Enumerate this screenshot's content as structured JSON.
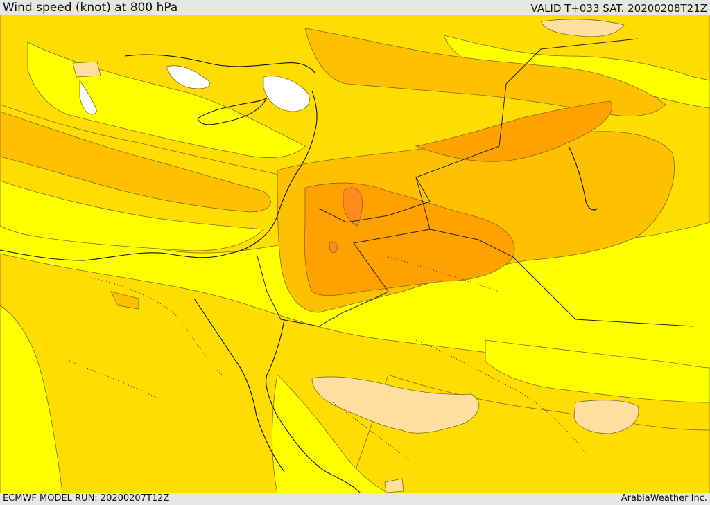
{
  "header": {
    "title": "Wind speed (knot) at 800 hPa",
    "valid": "VALID T+033 SAT. 20200208T21Z"
  },
  "footer": {
    "model_run": "ECMWF MODEL RUN: 20200207T12Z",
    "credit": "ArabiaWeather Inc."
  },
  "colors": {
    "band_white": "#ffffff",
    "band_yellow": "#ffff00",
    "band_gold": "#ffdd00",
    "band_amber": "#ffc000",
    "band_orange": "#ffa200",
    "band_darkorange": "#ff8a1a",
    "band_tan": "#ffdfa0"
  }
}
